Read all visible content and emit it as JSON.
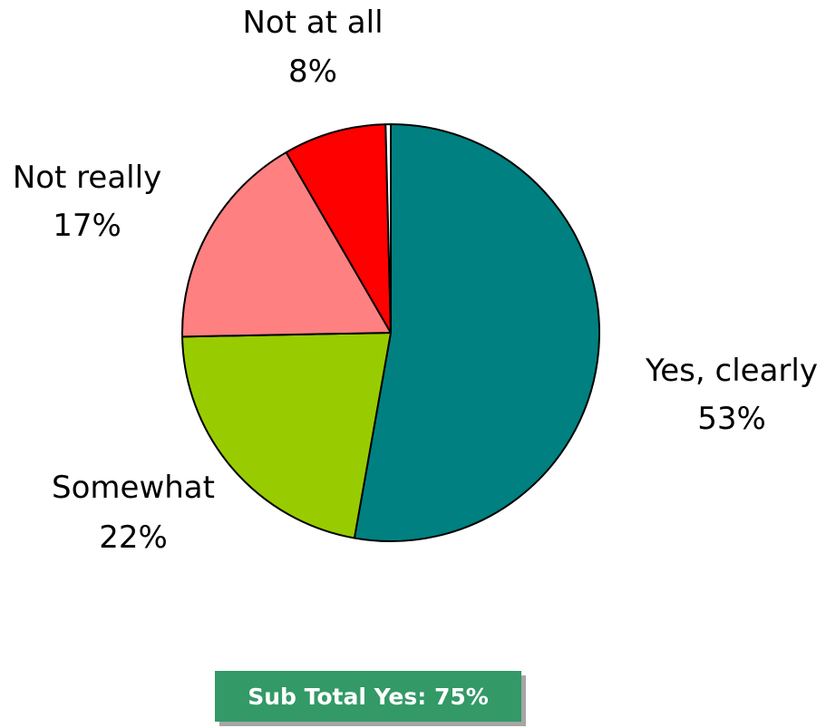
{
  "chart_data": {
    "type": "pie",
    "title": "",
    "slices": [
      {
        "label": "Yes, clearly",
        "value": 53,
        "value_label": "53%",
        "color": "#008080"
      },
      {
        "label": "Somewhat",
        "value": 22,
        "value_label": "22%",
        "color": "#99cc00"
      },
      {
        "label": "Not really",
        "value": 17,
        "value_label": "17%",
        "color": "#ff8080"
      },
      {
        "label": "Not at all",
        "value": 8,
        "value_label": "8%",
        "color": "#ff0000"
      }
    ],
    "unlabeled_sliver": {
      "value": 0.4,
      "color": "#ffffff"
    }
  },
  "subtotal": {
    "text": "Sub Total Yes: 75%",
    "color": "#339966"
  }
}
